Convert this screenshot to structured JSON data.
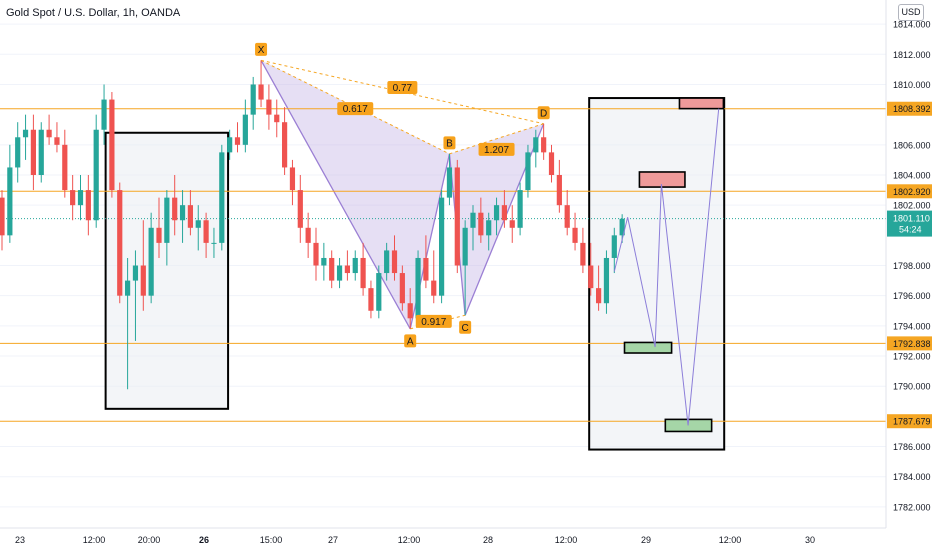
{
  "header": {
    "title": "Gold Spot / U.S. Dollar, 1h, OANDA",
    "currency": "USD"
  },
  "colors": {
    "up": "#26a69a",
    "down": "#ef5350",
    "level": "#f5a623",
    "pattern_fill": "#c8b8e6",
    "pattern_stroke": "#9b7fd4",
    "grid": "#f0f3fa",
    "fib_label_bg": "#f7a21b",
    "projection_line": "#8c7ed9",
    "target_green": "#a5d6a7",
    "target_red": "#ef9a9a",
    "current_price": "#26a69a"
  },
  "chart_data": {
    "type": "candlestick",
    "symbol": "XAUUSD",
    "timeframe": "1h",
    "ylim": [
      1780.6,
      1815.6
    ],
    "price_axis": {
      "ticks": [
        "1814.000",
        "1812.000",
        "1810.000",
        "1806.000",
        "1804.000",
        "1802.000",
        "1798.000",
        "1796.000",
        "1794.000",
        "1792.000",
        "1790.000",
        "1786.000",
        "1784.000",
        "1782.000"
      ],
      "tick_values": [
        1814,
        1812,
        1810,
        1806,
        1804,
        1802,
        1798,
        1796,
        1794,
        1792,
        1790,
        1786,
        1784,
        1782
      ]
    },
    "time_axis": {
      "labels": [
        "23",
        "12:00",
        "20:00",
        "26",
        "15:00",
        "27",
        "12:00",
        "28",
        "12:00",
        "29",
        "12:00",
        "30"
      ],
      "bold": [
        false,
        false,
        false,
        true,
        false,
        false,
        false,
        false,
        false,
        false,
        false,
        false
      ]
    },
    "horizontal_levels": [
      {
        "value": 1808.392,
        "label": "1808.392"
      },
      {
        "value": 1802.92,
        "label": "1802.920"
      },
      {
        "value": 1792.838,
        "label": "1792.838"
      },
      {
        "value": 1787.679,
        "label": "1787.679"
      }
    ],
    "current_price": {
      "value": 1801.11,
      "label": "1801.110",
      "countdown": "54:24"
    },
    "harmonic_pattern": {
      "points": [
        {
          "label": "X",
          "t": 33,
          "price": 1811.6
        },
        {
          "label": "A",
          "t": 52,
          "price": 1793.8
        },
        {
          "label": "B",
          "t": 57,
          "price": 1805.4
        },
        {
          "label": "C",
          "t": 59,
          "price": 1794.7
        },
        {
          "label": "D",
          "t": 69,
          "price": 1807.4
        }
      ],
      "ratios": [
        {
          "text": "0.617",
          "t": 45,
          "price": 1808.4
        },
        {
          "text": "0.77",
          "t": 51,
          "price": 1809.8
        },
        {
          "text": "1.207",
          "t": 63,
          "price": 1805.7
        },
        {
          "text": "0.917",
          "t": 55,
          "price": 1794.3
        }
      ]
    },
    "projection": {
      "points": [
        {
          "t": 78,
          "price": 1797.6
        },
        {
          "t": 79.7,
          "price": 1801.2
        },
        {
          "t": 83.2,
          "price": 1792.6
        },
        {
          "t": 84,
          "price": 1803.4
        },
        {
          "t": 87.4,
          "price": 1787.4
        },
        {
          "t": 91.3,
          "price": 1808.4
        }
      ],
      "zones": [
        {
          "t0": 86.3,
          "t1": 91.9,
          "p0": 1808.4,
          "p1": 1809.1,
          "kind": "red"
        },
        {
          "t0": 81.2,
          "t1": 87.0,
          "p0": 1803.2,
          "p1": 1804.2,
          "kind": "red"
        },
        {
          "t0": 79.3,
          "t1": 85.3,
          "p0": 1792.2,
          "p1": 1792.9,
          "kind": "green"
        },
        {
          "t0": 84.5,
          "t1": 90.4,
          "p0": 1787.0,
          "p1": 1787.8,
          "kind": "green"
        }
      ]
    },
    "boxes": [
      {
        "t0": 13.2,
        "t1": 28.8,
        "p0": 1806.8,
        "p1": 1788.5
      },
      {
        "t0": 74.8,
        "t1": 92.0,
        "p0": 1809.1,
        "p1": 1785.8
      }
    ],
    "candles": [
      [
        1802.5,
        1803.0,
        1799.0,
        1800.0
      ],
      [
        1800.0,
        1806.0,
        1799.5,
        1804.5
      ],
      [
        1804.5,
        1807.5,
        1803.5,
        1806.5
      ],
      [
        1806.5,
        1808.0,
        1805.0,
        1807.0
      ],
      [
        1807.0,
        1808.0,
        1803.0,
        1804.0
      ],
      [
        1804.0,
        1807.5,
        1803.5,
        1807.0
      ],
      [
        1807.0,
        1808.0,
        1806.0,
        1806.5
      ],
      [
        1806.5,
        1807.5,
        1805.5,
        1806.0
      ],
      [
        1806.0,
        1807.0,
        1802.5,
        1803.0
      ],
      [
        1803.0,
        1804.0,
        1801.0,
        1802.0
      ],
      [
        1802.0,
        1804.0,
        1801.0,
        1803.0
      ],
      [
        1803.0,
        1804.0,
        1800.0,
        1801.0
      ],
      [
        1801.0,
        1808.0,
        1800.5,
        1807.0
      ],
      [
        1807.0,
        1810.0,
        1806.0,
        1809.0
      ],
      [
        1809.0,
        1809.5,
        1802.5,
        1803.0
      ],
      [
        1803.0,
        1803.5,
        1795.5,
        1796.0
      ],
      [
        1796.0,
        1798.5,
        1789.8,
        1797.0
      ],
      [
        1797.0,
        1799.0,
        1793.0,
        1798.0
      ],
      [
        1798.0,
        1801.0,
        1795.0,
        1796.0
      ],
      [
        1796.0,
        1801.5,
        1795.5,
        1800.5
      ],
      [
        1800.5,
        1802.5,
        1798.5,
        1799.5
      ],
      [
        1799.5,
        1803.0,
        1798.0,
        1802.5
      ],
      [
        1802.5,
        1804.0,
        1800.0,
        1801.0
      ],
      [
        1801.0,
        1803.0,
        1799.5,
        1802.0
      ],
      [
        1802.0,
        1803.0,
        1800.0,
        1800.5
      ],
      [
        1800.5,
        1802.0,
        1799.0,
        1801.0
      ],
      [
        1801.0,
        1801.5,
        1798.5,
        1799.5
      ],
      [
        1799.5,
        1800.5,
        1798.5,
        1799.5
      ],
      [
        1799.5,
        1806.0,
        1799.0,
        1805.5
      ],
      [
        1805.5,
        1807.0,
        1805.0,
        1806.5
      ],
      [
        1806.5,
        1807.5,
        1805.5,
        1806.0
      ],
      [
        1806.0,
        1809.0,
        1805.5,
        1808.0
      ],
      [
        1808.0,
        1810.5,
        1807.0,
        1810.0
      ],
      [
        1810.0,
        1811.6,
        1808.5,
        1809.0
      ],
      [
        1809.0,
        1810.0,
        1807.0,
        1808.0
      ],
      [
        1808.0,
        1809.0,
        1806.5,
        1807.5
      ],
      [
        1807.5,
        1808.5,
        1804.0,
        1804.5
      ],
      [
        1804.5,
        1805.0,
        1802.0,
        1803.0
      ],
      [
        1803.0,
        1804.0,
        1799.5,
        1800.5
      ],
      [
        1800.5,
        1801.5,
        1798.5,
        1799.5
      ],
      [
        1799.5,
        1800.5,
        1797.0,
        1798.0
      ],
      [
        1798.0,
        1799.5,
        1797.0,
        1798.5
      ],
      [
        1798.5,
        1799.0,
        1796.5,
        1797.0
      ],
      [
        1797.0,
        1798.5,
        1796.5,
        1798.0
      ],
      [
        1798.0,
        1799.0,
        1797.0,
        1797.5
      ],
      [
        1797.5,
        1799.0,
        1797.0,
        1798.5
      ],
      [
        1798.5,
        1799.5,
        1796.0,
        1796.5
      ],
      [
        1796.5,
        1797.0,
        1794.5,
        1795.0
      ],
      [
        1795.0,
        1798.0,
        1794.5,
        1797.5
      ],
      [
        1797.5,
        1799.5,
        1797.0,
        1799.0
      ],
      [
        1799.0,
        1800.0,
        1797.0,
        1797.5
      ],
      [
        1797.5,
        1798.0,
        1795.0,
        1795.5
      ],
      [
        1795.5,
        1796.5,
        1793.8,
        1794.5
      ],
      [
        1794.5,
        1799.0,
        1794.0,
        1798.5
      ],
      [
        1798.5,
        1800.0,
        1796.5,
        1797.0
      ],
      [
        1797.0,
        1799.0,
        1795.5,
        1796.0
      ],
      [
        1796.0,
        1803.0,
        1795.5,
        1802.5
      ],
      [
        1802.5,
        1805.4,
        1802.0,
        1804.5
      ],
      [
        1804.5,
        1805.0,
        1797.5,
        1798.0
      ],
      [
        1798.0,
        1801.0,
        1794.7,
        1800.5
      ],
      [
        1800.5,
        1802.0,
        1799.0,
        1801.5
      ],
      [
        1801.5,
        1802.5,
        1799.5,
        1800.0
      ],
      [
        1800.0,
        1801.5,
        1799.0,
        1801.0
      ],
      [
        1801.0,
        1802.5,
        1800.0,
        1802.0
      ],
      [
        1802.0,
        1803.0,
        1800.5,
        1801.0
      ],
      [
        1801.0,
        1802.0,
        1799.5,
        1800.5
      ],
      [
        1800.5,
        1803.5,
        1800.0,
        1803.0
      ],
      [
        1803.0,
        1806.0,
        1802.5,
        1805.5
      ],
      [
        1805.5,
        1807.0,
        1804.5,
        1806.5
      ],
      [
        1806.5,
        1807.4,
        1805.0,
        1805.5
      ],
      [
        1805.5,
        1806.0,
        1803.5,
        1804.0
      ],
      [
        1804.0,
        1805.0,
        1801.5,
        1802.0
      ],
      [
        1802.0,
        1803.0,
        1800.0,
        1800.5
      ],
      [
        1800.5,
        1801.5,
        1799.0,
        1799.5
      ],
      [
        1799.5,
        1800.5,
        1797.5,
        1798.0
      ],
      [
        1798.0,
        1799.5,
        1796.0,
        1796.5
      ],
      [
        1796.5,
        1798.0,
        1795.0,
        1795.5
      ],
      [
        1795.5,
        1799.0,
        1794.8,
        1798.5
      ],
      [
        1798.5,
        1800.5,
        1797.5,
        1800.0
      ],
      [
        1800.0,
        1801.4,
        1799.5,
        1801.1
      ]
    ]
  }
}
